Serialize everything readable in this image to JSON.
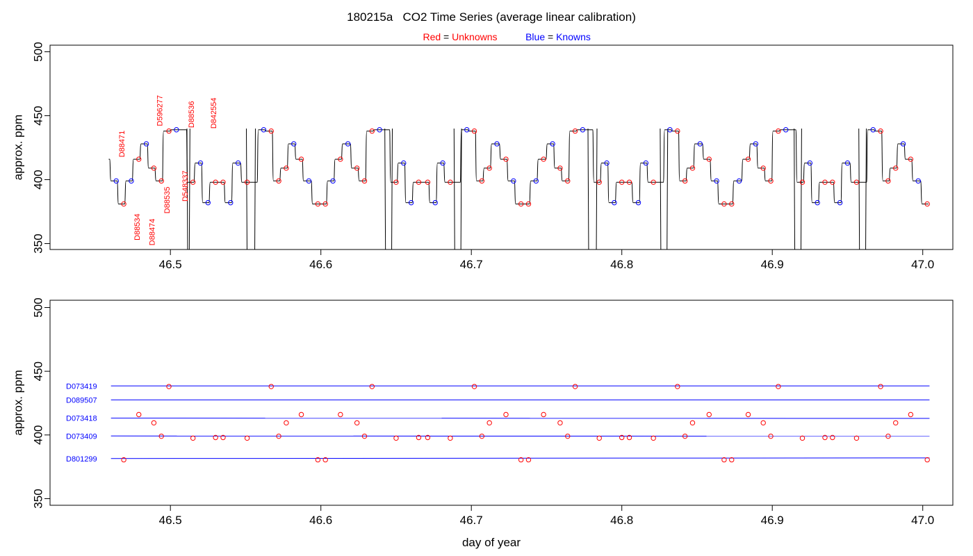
{
  "figure": {
    "title": "180215a   CO2 Time Series (average linear calibration)",
    "legend": [
      {
        "text": "Red = Unknowns",
        "parts": [
          "Red",
          " = ",
          "Unknowns"
        ],
        "color": "#ff0000"
      },
      {
        "text": "Blue = Knowns",
        "parts": [
          "Blue",
          " = ",
          "Knowns"
        ],
        "color": "#0000ff"
      }
    ],
    "xlabel": "day of year"
  },
  "colors": {
    "unknowns": "#ff0000",
    "knowns": "#0000ff",
    "trace": "#000000",
    "axis": "#000000"
  },
  "chart_data": [
    {
      "type": "line",
      "panel": "top",
      "ylabel": "approx. ppm",
      "xlim": [
        46.42,
        47.02
      ],
      "ylim": [
        345,
        500
      ],
      "x_ticks": [
        46.5,
        46.6,
        46.7,
        46.8,
        46.9,
        47.0
      ],
      "x_tick_labels": [
        "46.5",
        "46.6",
        "46.7",
        "46.8",
        "46.9",
        "47.0"
      ],
      "y_ticks": [
        350,
        400,
        450,
        500
      ],
      "y_tick_labels": [
        "350",
        "400",
        "450",
        "500"
      ],
      "cycle_start": 46.459,
      "cycle_step": 0.00504,
      "initial_value": 416,
      "dropout_value": 340,
      "sample_sequence": [
        "D801299",
        "D073409",
        "D801299",
        "D073409",
        "D073418",
        "D089507",
        "D073418",
        "D073409",
        "D073419",
        "D073419",
        "D073419",
        "D073409",
        "D073409",
        "D073409",
        "D073409",
        "D073418",
        "D801299",
        "D073418",
        "D801299",
        "D073418",
        "D073409",
        "D073409",
        "D073409",
        "D073409",
        "D073419",
        "D073419",
        "D073419",
        "D073409",
        "D073409",
        "D073418",
        "D073418",
        "D089507",
        "D073418",
        "D073409",
        "D073409",
        "D801299",
        "D801299",
        "D073409",
        "D073409",
        "D073418",
        "D073418",
        "D089507",
        "D073418",
        "D073419",
        "D073419",
        "D073419",
        "D073409",
        "D073409",
        "D073409",
        "D073409",
        "D073409",
        "D073409",
        "D073409",
        "D073409",
        "D073419",
        "D073419",
        "D073419",
        "D073409",
        "D073409",
        "D073418",
        "D073418",
        "D089507",
        "D073418",
        "D073409",
        "D073409",
        "D801299",
        "D801299",
        "D073409",
        "D073409",
        "D073418",
        "D073418",
        "D089507",
        "D073418",
        "D073419",
        "D073419",
        "D073419",
        "D073409",
        "D073409",
        "D073409",
        "D073409",
        "D073409",
        "D073409",
        "D073409",
        "D073409",
        "D073419",
        "D073419",
        "D073419",
        "D073409",
        "D073409",
        "D073418",
        "D073418",
        "D089507",
        "D073418",
        "D073409",
        "D073409",
        "D801299",
        "D801299",
        "D073409",
        "D073409",
        "D073418",
        "D073418",
        "D089507",
        "D073418",
        "D073409",
        "D073419",
        "D073419",
        "D073419",
        "D073409",
        "D073409",
        "D073409",
        "D073409",
        "D073409",
        "D073409",
        "D073409",
        "D073409",
        "D073419",
        "D073419",
        "D073409",
        "D073418",
        "D073418",
        "D089507",
        "D073418",
        "D073409",
        "D801299"
      ],
      "dropouts": [
        [
          46.511,
          46.513
        ],
        [
          46.5505,
          46.5565
        ],
        [
          46.6425,
          46.6475
        ],
        [
          46.6885,
          46.6935
        ],
        [
          46.7775,
          46.7835
        ],
        [
          46.8255,
          46.8305
        ],
        [
          46.9145,
          46.9195
        ],
        [
          46.9575,
          46.9625
        ]
      ],
      "unknown_points": [
        {
          "x": 46.469,
          "y": 381
        },
        {
          "x": 46.479,
          "y": 416
        },
        {
          "x": 46.489,
          "y": 409
        },
        {
          "x": 46.494,
          "y": 399
        },
        {
          "x": 46.499,
          "y": 438
        },
        {
          "x": 46.515,
          "y": 398
        },
        {
          "x": 46.53,
          "y": 398
        },
        {
          "x": 46.535,
          "y": 398
        },
        {
          "x": 46.551,
          "y": 398
        },
        {
          "x": 46.567,
          "y": 438
        },
        {
          "x": 46.572,
          "y": 399
        },
        {
          "x": 46.577,
          "y": 409
        },
        {
          "x": 46.587,
          "y": 416
        },
        {
          "x": 46.598,
          "y": 381
        },
        {
          "x": 46.603,
          "y": 381
        },
        {
          "x": 46.613,
          "y": 416
        },
        {
          "x": 46.624,
          "y": 409
        },
        {
          "x": 46.629,
          "y": 399
        },
        {
          "x": 46.634,
          "y": 438
        },
        {
          "x": 46.65,
          "y": 398
        },
        {
          "x": 46.665,
          "y": 398
        },
        {
          "x": 46.671,
          "y": 398
        },
        {
          "x": 46.686,
          "y": 398
        },
        {
          "x": 46.702,
          "y": 438
        },
        {
          "x": 46.707,
          "y": 399
        },
        {
          "x": 46.712,
          "y": 409
        },
        {
          "x": 46.723,
          "y": 416
        },
        {
          "x": 46.733,
          "y": 381
        },
        {
          "x": 46.738,
          "y": 381
        },
        {
          "x": 46.748,
          "y": 416
        },
        {
          "x": 46.759,
          "y": 409
        },
        {
          "x": 46.764,
          "y": 399
        },
        {
          "x": 46.769,
          "y": 438
        },
        {
          "x": 46.785,
          "y": 398
        },
        {
          "x": 46.8,
          "y": 398
        },
        {
          "x": 46.805,
          "y": 398
        },
        {
          "x": 46.821,
          "y": 398
        },
        {
          "x": 46.837,
          "y": 438
        },
        {
          "x": 46.842,
          "y": 399
        },
        {
          "x": 46.847,
          "y": 409
        },
        {
          "x": 46.858,
          "y": 416
        },
        {
          "x": 46.868,
          "y": 381
        },
        {
          "x": 46.873,
          "y": 381
        },
        {
          "x": 46.884,
          "y": 416
        },
        {
          "x": 46.894,
          "y": 409
        },
        {
          "x": 46.899,
          "y": 399
        },
        {
          "x": 46.904,
          "y": 438
        },
        {
          "x": 46.92,
          "y": 398
        },
        {
          "x": 46.935,
          "y": 398
        },
        {
          "x": 46.94,
          "y": 398
        },
        {
          "x": 46.956,
          "y": 398
        },
        {
          "x": 46.972,
          "y": 438
        },
        {
          "x": 46.977,
          "y": 399
        },
        {
          "x": 46.982,
          "y": 409
        },
        {
          "x": 46.992,
          "y": 416
        },
        {
          "x": 47.003,
          "y": 381
        }
      ],
      "known_points": [
        {
          "x": 46.464,
          "y": 399
        },
        {
          "x": 46.474,
          "y": 399
        },
        {
          "x": 46.484,
          "y": 428
        },
        {
          "x": 46.504,
          "y": 439
        },
        {
          "x": 46.52,
          "y": 413
        },
        {
          "x": 46.525,
          "y": 382
        },
        {
          "x": 46.54,
          "y": 382
        },
        {
          "x": 46.545,
          "y": 413
        },
        {
          "x": 46.562,
          "y": 439
        },
        {
          "x": 46.582,
          "y": 428
        },
        {
          "x": 46.592,
          "y": 399
        },
        {
          "x": 46.608,
          "y": 399
        },
        {
          "x": 46.618,
          "y": 428
        },
        {
          "x": 46.639,
          "y": 439
        },
        {
          "x": 46.655,
          "y": 413
        },
        {
          "x": 46.66,
          "y": 382
        },
        {
          "x": 46.676,
          "y": 382
        },
        {
          "x": 46.681,
          "y": 413
        },
        {
          "x": 46.697,
          "y": 439
        },
        {
          "x": 46.717,
          "y": 428
        },
        {
          "x": 46.728,
          "y": 399
        },
        {
          "x": 46.743,
          "y": 399
        },
        {
          "x": 46.754,
          "y": 428
        },
        {
          "x": 46.774,
          "y": 439
        },
        {
          "x": 46.79,
          "y": 413
        },
        {
          "x": 46.795,
          "y": 382
        },
        {
          "x": 46.811,
          "y": 382
        },
        {
          "x": 46.816,
          "y": 413
        },
        {
          "x": 46.832,
          "y": 439
        },
        {
          "x": 46.852,
          "y": 428
        },
        {
          "x": 46.863,
          "y": 399
        },
        {
          "x": 46.878,
          "y": 399
        },
        {
          "x": 46.889,
          "y": 428
        },
        {
          "x": 46.909,
          "y": 439
        },
        {
          "x": 46.925,
          "y": 413
        },
        {
          "x": 46.93,
          "y": 382
        },
        {
          "x": 46.945,
          "y": 382
        },
        {
          "x": 46.95,
          "y": 413
        },
        {
          "x": 46.967,
          "y": 439
        },
        {
          "x": 46.987,
          "y": 428
        },
        {
          "x": 46.997,
          "y": 399
        }
      ],
      "annotations": [
        {
          "text": "D88471",
          "x": 46.4695,
          "y": 428
        },
        {
          "text": "D88534",
          "x": 46.4795,
          "y": 363
        },
        {
          "text": "D88474",
          "x": 46.4895,
          "y": 359
        },
        {
          "text": "D88535",
          "x": 46.4995,
          "y": 384
        },
        {
          "text": "D596277",
          "x": 46.4945,
          "y": 454
        },
        {
          "text": "D548337",
          "x": 46.5115,
          "y": 395
        },
        {
          "text": "D88536",
          "x": 46.5155,
          "y": 451
        },
        {
          "text": "D842554",
          "x": 46.5305,
          "y": 452
        }
      ]
    },
    {
      "type": "scatter",
      "panel": "bottom",
      "ylabel": "approx. ppm",
      "xlim": [
        46.42,
        47.02
      ],
      "ylim": [
        345,
        500
      ],
      "x_ticks": [
        46.5,
        46.6,
        46.7,
        46.8,
        46.9,
        47.0
      ],
      "x_tick_labels": [
        "46.5",
        "46.6",
        "46.7",
        "46.8",
        "46.9",
        "47.0"
      ],
      "y_ticks": [
        350,
        400,
        450,
        500
      ],
      "y_tick_labels": [
        "350",
        "400",
        "450",
        "500"
      ],
      "reference_lines": [
        {
          "name": "D073419",
          "start": 438.5,
          "end": 438.5
        },
        {
          "name": "D089507",
          "start": 427.5,
          "end": 427.5
        },
        {
          "name": "D073418",
          "start": 413.2,
          "end": 413.0
        },
        {
          "name": "D073409",
          "start": 399.2,
          "end": 399.0
        },
        {
          "name": "D801299",
          "start": 381.5,
          "end": 382.0
        }
      ],
      "reference_x_range": [
        46.4605,
        47.0045
      ],
      "unknown_points": [
        {
          "x": 46.469,
          "y": 380.5
        },
        {
          "x": 46.479,
          "y": 416
        },
        {
          "x": 46.489,
          "y": 409.5
        },
        {
          "x": 46.494,
          "y": 399
        },
        {
          "x": 46.499,
          "y": 438
        },
        {
          "x": 46.515,
          "y": 397.5
        },
        {
          "x": 46.53,
          "y": 398
        },
        {
          "x": 46.535,
          "y": 398
        },
        {
          "x": 46.551,
          "y": 397.5
        },
        {
          "x": 46.567,
          "y": 438
        },
        {
          "x": 46.572,
          "y": 399
        },
        {
          "x": 46.577,
          "y": 409.5
        },
        {
          "x": 46.587,
          "y": 416
        },
        {
          "x": 46.598,
          "y": 380.5
        },
        {
          "x": 46.603,
          "y": 380.5
        },
        {
          "x": 46.613,
          "y": 416
        },
        {
          "x": 46.624,
          "y": 409.5
        },
        {
          "x": 46.629,
          "y": 399
        },
        {
          "x": 46.634,
          "y": 438
        },
        {
          "x": 46.65,
          "y": 397.5
        },
        {
          "x": 46.665,
          "y": 398
        },
        {
          "x": 46.671,
          "y": 398
        },
        {
          "x": 46.686,
          "y": 397.5
        },
        {
          "x": 46.702,
          "y": 438
        },
        {
          "x": 46.707,
          "y": 399
        },
        {
          "x": 46.712,
          "y": 409.5
        },
        {
          "x": 46.723,
          "y": 416
        },
        {
          "x": 46.733,
          "y": 380.5
        },
        {
          "x": 46.738,
          "y": 380.5
        },
        {
          "x": 46.748,
          "y": 416
        },
        {
          "x": 46.759,
          "y": 409.5
        },
        {
          "x": 46.764,
          "y": 399
        },
        {
          "x": 46.769,
          "y": 438
        },
        {
          "x": 46.785,
          "y": 397.5
        },
        {
          "x": 46.8,
          "y": 398
        },
        {
          "x": 46.805,
          "y": 398
        },
        {
          "x": 46.821,
          "y": 397.5
        },
        {
          "x": 46.837,
          "y": 438
        },
        {
          "x": 46.842,
          "y": 399
        },
        {
          "x": 46.847,
          "y": 409.5
        },
        {
          "x": 46.858,
          "y": 416
        },
        {
          "x": 46.868,
          "y": 380.5
        },
        {
          "x": 46.873,
          "y": 380.5
        },
        {
          "x": 46.884,
          "y": 416
        },
        {
          "x": 46.894,
          "y": 409.5
        },
        {
          "x": 46.899,
          "y": 399
        },
        {
          "x": 46.904,
          "y": 438
        },
        {
          "x": 46.92,
          "y": 397.5
        },
        {
          "x": 46.935,
          "y": 398
        },
        {
          "x": 46.94,
          "y": 398
        },
        {
          "x": 46.956,
          "y": 397.5
        },
        {
          "x": 46.972,
          "y": 438
        },
        {
          "x": 46.977,
          "y": 399
        },
        {
          "x": 46.982,
          "y": 409.5
        },
        {
          "x": 46.992,
          "y": 416
        },
        {
          "x": 47.003,
          "y": 380.5
        }
      ]
    }
  ]
}
